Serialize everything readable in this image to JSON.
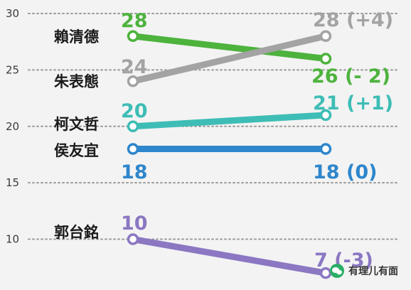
{
  "chart_data": {
    "type": "line",
    "x": [
      "start",
      "end"
    ],
    "ylim": [
      5.5,
      31.2
    ],
    "yticks": [
      10,
      15,
      20,
      25,
      30
    ],
    "grid": true,
    "series": [
      {
        "name": "賴清德",
        "values": [
          28,
          26
        ],
        "start_label": "28",
        "end_label": "26 (- 2)",
        "color": "#4db33d"
      },
      {
        "name": "朱表態",
        "values": [
          24,
          28
        ],
        "start_label": "24",
        "end_label": "28 (+4)",
        "color": "#a3a3a3"
      },
      {
        "name": "柯文哲",
        "values": [
          20,
          21
        ],
        "start_label": "20",
        "end_label": "21 (+1)",
        "color": "#3dbdb5"
      },
      {
        "name": "侯友宜",
        "values": [
          18,
          18
        ],
        "start_label": "18",
        "end_label": "18 (0)",
        "color": "#2e86cc"
      },
      {
        "name": "郭台銘",
        "values": [
          10,
          7
        ],
        "start_label": "10",
        "end_label": "7 (-3)",
        "color": "#8b77c2"
      }
    ]
  },
  "watermark": {
    "text": "有理儿有面",
    "icon": "wechat-icon"
  }
}
